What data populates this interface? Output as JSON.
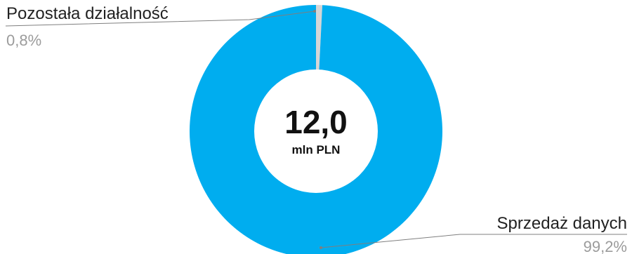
{
  "chart_data": {
    "type": "pie",
    "variant": "donut",
    "center": {
      "value": "12,0",
      "unit": "mln PLN"
    },
    "slices": [
      {
        "label": "Sprzedaż danych",
        "value": 99.2,
        "display": "99,2%",
        "color": "#00adef"
      },
      {
        "label": "Pozostała działalność",
        "value": 0.8,
        "display": "0,8%",
        "color": "#d6d6d6"
      }
    ],
    "legend": "none"
  }
}
